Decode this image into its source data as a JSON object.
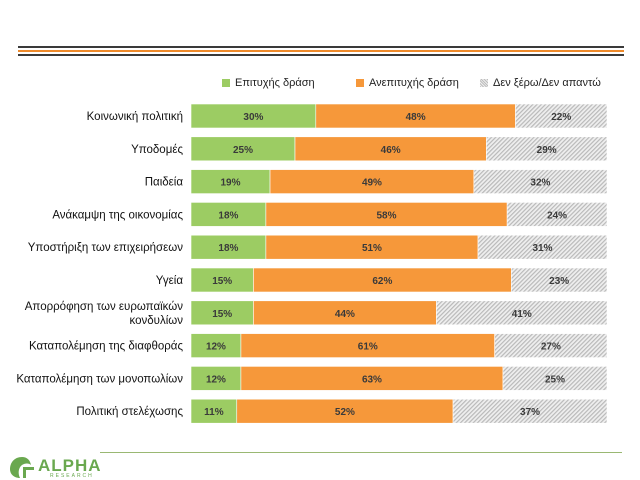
{
  "legend": {
    "success": "Επιτυχής δράση",
    "failure": "Ανεπιτυχής δράση",
    "dont_know": "Δεν ξέρω/Δεν απαντώ"
  },
  "logo": {
    "name": "ALPHA",
    "sub": "RESEARCH"
  },
  "colors": {
    "success": "#9ccc63",
    "failure": "#f6983a",
    "dont_know": "#d9d9d9"
  },
  "chart_data": {
    "type": "bar",
    "orientation": "horizontal",
    "stacked": true,
    "percent": true,
    "categories": [
      "Κοινωνική πολιτική",
      "Υποδομές",
      "Παιδεία",
      "Ανάκαμψη της οικονομίας",
      "Υποστήριξη των επιχειρήσεων",
      "Υγεία",
      "Απορρόφηση των ευρωπαϊκών κονδυλίων",
      "Καταπολέμηση της διαφθοράς",
      "Καταπολέμηση των μονοπωλίων",
      "Πολιτική στελέχωσης"
    ],
    "series": [
      {
        "name": "Επιτυχής δράση",
        "values": [
          30,
          25,
          19,
          18,
          18,
          15,
          15,
          12,
          12,
          11
        ]
      },
      {
        "name": "Ανεπιτυχής δράση",
        "values": [
          48,
          46,
          49,
          58,
          51,
          62,
          44,
          61,
          63,
          52
        ]
      },
      {
        "name": "Δεν ξέρω/Δεν απαντώ",
        "values": [
          22,
          29,
          32,
          24,
          31,
          23,
          41,
          27,
          25,
          37
        ]
      }
    ],
    "legend_position": "top",
    "xlim": [
      0,
      100
    ],
    "grid": false
  }
}
